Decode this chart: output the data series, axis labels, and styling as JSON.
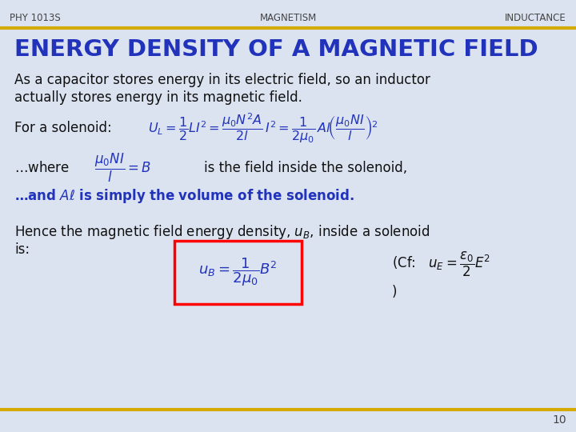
{
  "bg_color": "#dce3f0",
  "header_text_left": "PHY 1013S",
  "header_text_center": "MAGNETISM",
  "header_text_right": "INDUCTANCE",
  "header_line_color": "#d4aa00",
  "title": "ENERGY DENSITY OF A MAGNETIC FIELD",
  "title_color": "#2233bb",
  "body_color": "#111111",
  "formula_color": "#2233bb",
  "bold_text_color": "#2233bb",
  "page_number": "10",
  "footer_line_color": "#d4aa00"
}
